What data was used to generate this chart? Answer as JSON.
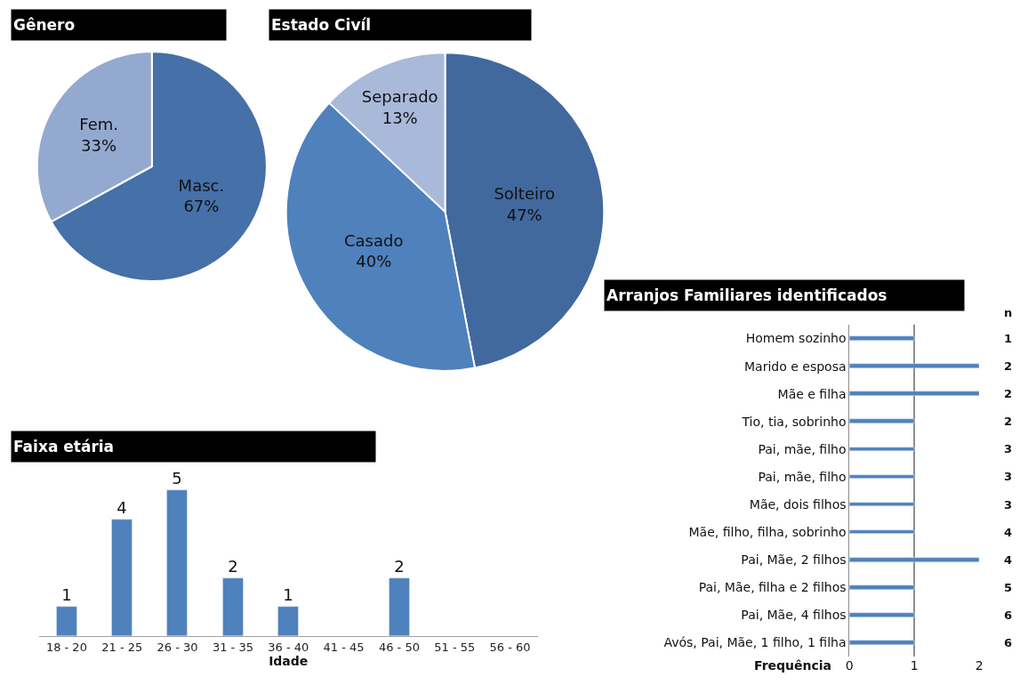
{
  "chart_data": [
    {
      "type": "pie",
      "title": "Gênero",
      "categories": [
        "Masc.",
        "Fem."
      ],
      "values": [
        67,
        33
      ],
      "value_labels": [
        "67%",
        "33%"
      ],
      "colors": [
        "#4570a8",
        "#93a9d0"
      ]
    },
    {
      "type": "pie",
      "title": "Estado Civíl",
      "categories": [
        "Solteiro",
        "Casado",
        "Separado"
      ],
      "values": [
        47,
        40,
        13
      ],
      "value_labels": [
        "47%",
        "40%",
        "13%"
      ],
      "colors": [
        "#41699e",
        "#4f81bd",
        "#a9b9da"
      ]
    },
    {
      "type": "bar",
      "title": "Faixa etária",
      "xlabel": "Idade",
      "categories": [
        "18 - 20",
        "21 - 25",
        "26 - 30",
        "31 - 35",
        "36 - 40",
        "41 - 45",
        "46 - 50",
        "51 - 55",
        "56 - 60"
      ],
      "values": [
        1,
        4,
        5,
        2,
        1,
        null,
        2,
        null,
        null
      ],
      "value_labels": [
        "1",
        "4",
        "5",
        "2",
        "1",
        null,
        "2",
        null,
        null
      ],
      "color": "#4f81bd"
    },
    {
      "type": "bar",
      "orientation": "horizontal",
      "title": "Arranjos Familiares identificados",
      "xlabel": "Frequência",
      "y2label": "n",
      "categories": [
        "Homem sozinho",
        "Marido e esposa",
        "Mãe e filha",
        "Tio, tia, sobrinho",
        "Pai, mãe, filho",
        "Pai, mãe, filho",
        "Mãe, dois filhos",
        "Mãe, filho, filha, sobrinho",
        "Pai, Mãe, 2 filhos",
        "Pai, Mãe, filha e 2 filhos",
        "Pai, Mãe, 4 filhos",
        "Avós, Pai, Mãe, 1 filho, 1 filha"
      ],
      "y2_categories": [
        "1",
        "2",
        "2",
        "2",
        "3",
        "3",
        "3",
        "4",
        "4",
        "5",
        "6",
        "6"
      ],
      "values": [
        1,
        2,
        2,
        1,
        1,
        1,
        1,
        1,
        2,
        1,
        1,
        1
      ],
      "color": "#4f81bd",
      "xlim": [
        0,
        2
      ],
      "xticks": [
        0,
        1,
        2
      ],
      "grid": "x"
    }
  ]
}
